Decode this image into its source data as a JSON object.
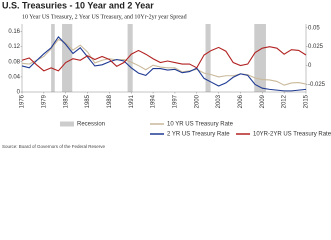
{
  "chart_data": {
    "type": "line",
    "title": "U.S. Treasuries - 10 Year and 2 Year",
    "subtitle": "10 Year US Treasury, 2 Year US Treasury, and 10Yr-2yr year Spread",
    "source": "Source: Board of Governors of the Federal Reserve",
    "x": [
      1976,
      1977,
      1978,
      1979,
      1980,
      1981,
      1982,
      1983,
      1984,
      1985,
      1986,
      1987,
      1988,
      1989,
      1990,
      1991,
      1992,
      1993,
      1994,
      1995,
      1996,
      1997,
      1998,
      1999,
      2000,
      2001,
      2002,
      2003,
      2004,
      2005,
      2006,
      2007,
      2008,
      2009,
      2010,
      2011,
      2012,
      2013,
      2014,
      2015
    ],
    "xlim": [
      1976,
      2015
    ],
    "xticks": [
      1976,
      1979,
      1982,
      1985,
      1988,
      1991,
      1994,
      1997,
      2000,
      2003,
      2006,
      2009,
      2012,
      2015
    ],
    "ylim": [
      0,
      0.18
    ],
    "yticks": [
      0,
      0.04,
      0.08,
      0.12,
      0.16
    ],
    "y2lim": [
      -0.035,
      0.055
    ],
    "y2ticks": [
      -0.025,
      0,
      0.025,
      0.05
    ],
    "recession_label": "Recession",
    "recession_color": "#cccccc",
    "recessions": [
      [
        1980,
        1980.5
      ],
      [
        1981.5,
        1982.9
      ],
      [
        1990.5,
        1991.2
      ],
      [
        2001.2,
        2001.9
      ],
      [
        2007.9,
        2009.5
      ]
    ],
    "series": [
      {
        "name": "10 YR US Treasury Rate",
        "color": "#c9b99a",
        "axis": "y",
        "values": [
          0.076,
          0.074,
          0.084,
          0.094,
          0.114,
          0.139,
          0.13,
          0.111,
          0.124,
          0.106,
          0.077,
          0.084,
          0.088,
          0.085,
          0.086,
          0.079,
          0.07,
          0.059,
          0.071,
          0.066,
          0.064,
          0.064,
          0.053,
          0.056,
          0.06,
          0.05,
          0.046,
          0.04,
          0.043,
          0.043,
          0.048,
          0.046,
          0.037,
          0.033,
          0.032,
          0.028,
          0.018,
          0.024,
          0.025,
          0.021
        ]
      },
      {
        "name": "2 YR US Treasury Rate",
        "color": "#1f3a93",
        "axis": "y",
        "values": [
          0.069,
          0.064,
          0.083,
          0.101,
          0.117,
          0.146,
          0.126,
          0.102,
          0.117,
          0.093,
          0.069,
          0.072,
          0.08,
          0.086,
          0.082,
          0.064,
          0.05,
          0.044,
          0.062,
          0.062,
          0.058,
          0.06,
          0.051,
          0.054,
          0.063,
          0.036,
          0.026,
          0.016,
          0.024,
          0.039,
          0.048,
          0.044,
          0.02,
          0.01,
          0.007,
          0.005,
          0.003,
          0.003,
          0.005,
          0.007
        ]
      },
      {
        "name": "10YR-2YR US Treasury Rate",
        "color": "#b22222",
        "axis": "y2",
        "values": [
          0.007,
          0.01,
          0.001,
          -0.007,
          -0.003,
          -0.007,
          0.004,
          0.009,
          0.007,
          0.013,
          0.008,
          0.012,
          0.008,
          -0.001,
          0.004,
          0.015,
          0.02,
          0.015,
          0.009,
          0.004,
          0.006,
          0.004,
          0.002,
          0.002,
          -0.003,
          0.014,
          0.02,
          0.024,
          0.019,
          0.004,
          0,
          0.002,
          0.017,
          0.023,
          0.025,
          0.023,
          0.015,
          0.021,
          0.02,
          0.014
        ]
      }
    ]
  }
}
